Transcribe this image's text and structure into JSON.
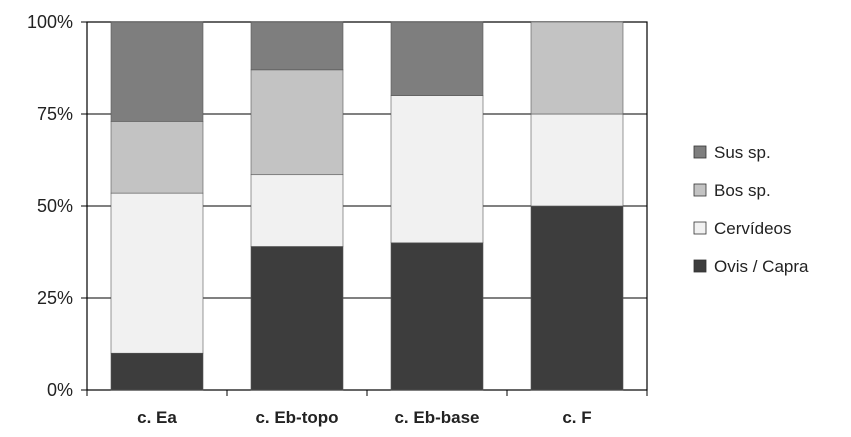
{
  "chart_data": {
    "type": "bar",
    "stacked": true,
    "percent": true,
    "categories": [
      "c. Ea",
      "c. Eb-topo",
      "c. Eb-base",
      "c. F"
    ],
    "series": [
      {
        "name": "Ovis / Capra",
        "color": "#3d3d3d",
        "values": [
          10,
          39,
          40,
          50
        ]
      },
      {
        "name": "Cervídeos",
        "color": "#f1f1f1",
        "values": [
          43.5,
          19.5,
          40,
          25
        ]
      },
      {
        "name": "Bos sp.",
        "color": "#c3c3c3",
        "values": [
          19.5,
          28.5,
          0,
          25
        ]
      },
      {
        "name": "Sus sp.",
        "color": "#7e7e7e",
        "values": [
          27,
          13,
          20,
          0
        ]
      }
    ],
    "yticks": [
      "0%",
      "25%",
      "50%",
      "75%",
      "100%"
    ],
    "ylim": [
      0,
      100
    ],
    "grid": true,
    "legend": "right",
    "legend_order": [
      "Sus sp.",
      "Bos sp.",
      "Cervídeos",
      "Ovis / Capra"
    ]
  }
}
